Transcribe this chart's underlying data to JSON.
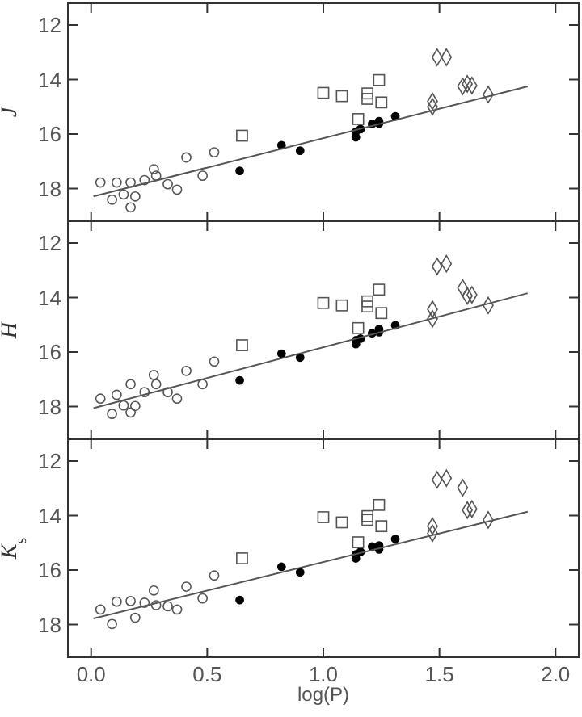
{
  "chart_data": [
    {
      "type": "scatter",
      "ylabel": "J",
      "xlim": [
        -0.1,
        2.1
      ],
      "ylim": [
        19.2,
        11.2
      ],
      "xticks": [
        0,
        0.5,
        1,
        1.5,
        2
      ],
      "yticks": [
        12,
        14,
        16,
        18
      ],
      "tick_labels": "y",
      "grid": false,
      "series": [
        {
          "color": "#555555",
          "marker": "circle",
          "x": [
            0.04,
            0.09,
            0.11,
            0.14,
            0.17,
            0.17,
            0.19,
            0.23,
            0.27,
            0.28,
            0.33,
            0.37,
            0.41,
            0.48,
            0.53
          ],
          "values": [
            17.78,
            18.41,
            17.78,
            18.22,
            17.78,
            18.69,
            18.29,
            17.69,
            17.29,
            17.53,
            17.84,
            18.04,
            16.86,
            17.53,
            16.67
          ]
        },
        {
          "color": "#000000",
          "marker": "circle",
          "x": [
            0.64,
            0.82,
            0.9,
            1.14,
            1.14,
            1.16,
            1.21,
            1.24,
            1.24,
            1.31
          ],
          "values": [
            17.35,
            16.41,
            16.61,
            15.92,
            16.12,
            15.82,
            15.63,
            15.61,
            15.53,
            15.35
          ]
        },
        {
          "color": "#555555",
          "marker": "square",
          "x": [
            0.65,
            1.0,
            1.08,
            1.19,
            1.19,
            1.15,
            1.24,
            1.25
          ],
          "values": [
            16.06,
            14.49,
            14.61,
            14.51,
            14.71,
            15.45,
            14.02,
            14.84
          ]
        },
        {
          "color": "#555555",
          "marker": "diamond",
          "x": [
            1.49,
            1.53,
            1.47,
            1.47,
            1.6,
            1.62,
            1.64,
            1.71
          ],
          "values": [
            13.18,
            13.18,
            14.8,
            15.0,
            14.25,
            14.16,
            14.22,
            14.55
          ]
        },
        {
          "type": "line",
          "color": "#555555",
          "marker": "none",
          "x": [
            0.01,
            1.88
          ],
          "values": [
            18.29,
            14.25
          ]
        }
      ]
    },
    {
      "type": "scatter",
      "ylabel": "H",
      "xlim": [
        -0.1,
        2.1
      ],
      "ylim": [
        19.2,
        11.2
      ],
      "xticks": [
        0,
        0.5,
        1,
        1.5,
        2
      ],
      "yticks": [
        12,
        14,
        16,
        18
      ],
      "tick_labels": "y",
      "grid": false,
      "series": [
        {
          "color": "#555555",
          "marker": "circle",
          "x": [
            0.04,
            0.09,
            0.11,
            0.14,
            0.17,
            0.17,
            0.19,
            0.23,
            0.27,
            0.28,
            0.33,
            0.37,
            0.41,
            0.48,
            0.53
          ],
          "values": [
            17.71,
            18.27,
            17.57,
            17.96,
            17.18,
            18.22,
            17.98,
            17.47,
            16.84,
            17.18,
            17.47,
            17.71,
            16.69,
            17.18,
            16.35
          ]
        },
        {
          "color": "#000000",
          "marker": "circle",
          "x": [
            0.64,
            0.82,
            0.9,
            1.14,
            1.14,
            1.16,
            1.21,
            1.24,
            1.24,
            1.31
          ],
          "values": [
            17.04,
            16.06,
            16.2,
            15.71,
            15.57,
            15.51,
            15.31,
            15.27,
            15.16,
            15.02
          ]
        },
        {
          "color": "#555555",
          "marker": "square",
          "x": [
            0.65,
            1.0,
            1.08,
            1.19,
            1.19,
            1.15,
            1.24,
            1.25
          ],
          "values": [
            15.75,
            14.2,
            14.29,
            14.14,
            14.33,
            15.12,
            13.71,
            14.57
          ]
        },
        {
          "color": "#555555",
          "marker": "diamond",
          "x": [
            1.49,
            1.53,
            1.47,
            1.47,
            1.6,
            1.62,
            1.64,
            1.71
          ],
          "values": [
            12.86,
            12.76,
            14.43,
            14.78,
            13.65,
            13.94,
            13.9,
            14.29
          ]
        },
        {
          "type": "line",
          "color": "#555555",
          "marker": "none",
          "x": [
            0.01,
            1.88
          ],
          "values": [
            18.06,
            13.84
          ]
        }
      ]
    },
    {
      "type": "scatter",
      "ylabel": "K$_{s}$",
      "xlabel": "log(P)",
      "xlim": [
        -0.1,
        2.1
      ],
      "ylim": [
        19.2,
        11.2
      ],
      "xticks": [
        {
          "value": 0,
          "label": "0.0"
        },
        0.5,
        {
          "value": 1,
          "label": "1.0"
        },
        1.5,
        {
          "value": 2,
          "label": "2.0"
        }
      ],
      "yticks": [
        12,
        14,
        16,
        18
      ],
      "grid": false,
      "series": [
        {
          "color": "#555555",
          "marker": "circle",
          "x": [
            0.04,
            0.09,
            0.11,
            0.17,
            0.19,
            0.23,
            0.27,
            0.28,
            0.33,
            0.37,
            0.41,
            0.48,
            0.53
          ],
          "values": [
            17.45,
            17.98,
            17.16,
            17.14,
            17.75,
            17.2,
            16.75,
            17.29,
            17.33,
            17.45,
            16.61,
            17.04,
            16.2
          ]
        },
        {
          "color": "#000000",
          "marker": "circle",
          "x": [
            0.64,
            0.82,
            0.9,
            1.14,
            1.14,
            1.16,
            1.21,
            1.24,
            1.24,
            1.31
          ],
          "values": [
            17.1,
            15.88,
            16.08,
            15.57,
            15.43,
            15.33,
            15.14,
            15.1,
            15.24,
            14.86
          ]
        },
        {
          "color": "#555555",
          "marker": "square",
          "x": [
            0.65,
            1.0,
            1.08,
            1.19,
            1.19,
            1.15,
            1.24,
            1.25
          ],
          "values": [
            15.57,
            14.06,
            14.25,
            14.02,
            14.16,
            14.98,
            13.61,
            14.39
          ]
        },
        {
          "color": "#555555",
          "marker": "diamond",
          "x": [
            1.49,
            1.53,
            1.6,
            1.47,
            1.47,
            1.62,
            1.64,
            1.71
          ],
          "values": [
            12.69,
            12.63,
            12.98,
            14.39,
            14.65,
            13.8,
            13.76,
            14.16
          ]
        },
        {
          "type": "line",
          "color": "#555555",
          "marker": "none",
          "x": [
            0.01,
            1.88
          ],
          "values": [
            17.78,
            13.86
          ]
        }
      ]
    }
  ]
}
